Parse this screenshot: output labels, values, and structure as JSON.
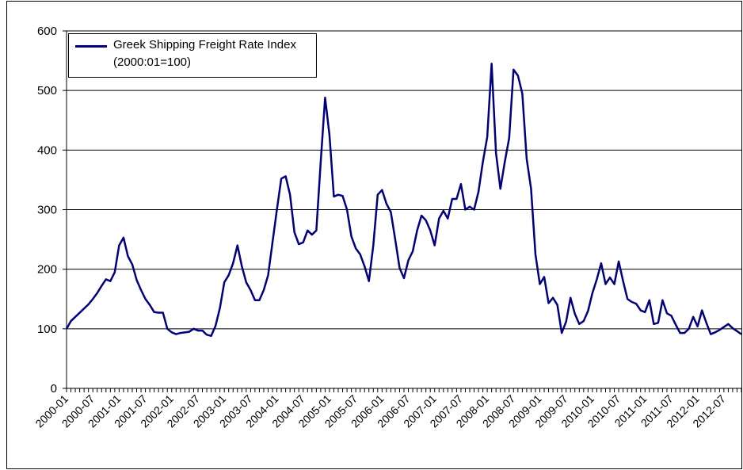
{
  "chart_data": {
    "type": "line",
    "categories": [
      "2000-01",
      null,
      null,
      null,
      null,
      null,
      "2000-07",
      null,
      null,
      null,
      null,
      null,
      "2001-01",
      null,
      null,
      null,
      null,
      null,
      "2001-07",
      null,
      null,
      null,
      null,
      null,
      "2002-01",
      null,
      null,
      null,
      null,
      null,
      "2002-07",
      null,
      null,
      null,
      null,
      null,
      "2003-01",
      null,
      null,
      null,
      null,
      null,
      "2003-07",
      null,
      null,
      null,
      null,
      null,
      "2004-01",
      null,
      null,
      null,
      null,
      null,
      "2004-07",
      null,
      null,
      null,
      null,
      null,
      "2005-01",
      null,
      null,
      null,
      null,
      null,
      "2005-07",
      null,
      null,
      null,
      null,
      null,
      "2006-01",
      null,
      null,
      null,
      null,
      null,
      "2006-07",
      null,
      null,
      null,
      null,
      null,
      "2007-01",
      null,
      null,
      null,
      null,
      null,
      "2007-07",
      null,
      null,
      null,
      null,
      null,
      "2008-01",
      null,
      null,
      null,
      null,
      null,
      "2008-07",
      null,
      null,
      null,
      null,
      null,
      "2009-01",
      null,
      null,
      null,
      null,
      null,
      "2009-07",
      null,
      null,
      null,
      null,
      null,
      "2010-01",
      null,
      null,
      null,
      null,
      null,
      "2010-07",
      null,
      null,
      null,
      null,
      null,
      "2011-01",
      null,
      null,
      null,
      null,
      null,
      "2011-07",
      null,
      null,
      null,
      null,
      null,
      "2012-01",
      null,
      null,
      null,
      null,
      null,
      "2012-07",
      null,
      null,
      null,
      null
    ],
    "series": [
      {
        "name": "Greek Shipping Freight Rate Index (2000:01=100)",
        "color": "#000080",
        "values": [
          100,
          113,
          120,
          127,
          134,
          141,
          150,
          160,
          172,
          183,
          180,
          195,
          240,
          253,
          222,
          208,
          182,
          165,
          150,
          140,
          128,
          127,
          127,
          100,
          94,
          91,
          93,
          94,
          95,
          100,
          97,
          97,
          90,
          88,
          105,
          135,
          178,
          190,
          210,
          240,
          205,
          178,
          165,
          148,
          148,
          165,
          190,
          245,
          300,
          352,
          356,
          325,
          262,
          242,
          245,
          265,
          258,
          265,
          380,
          488,
          425,
          322,
          325,
          323,
          300,
          255,
          235,
          225,
          205,
          180,
          240,
          325,
          333,
          310,
          296,
          250,
          202,
          185,
          215,
          230,
          265,
          290,
          282,
          265,
          240,
          285,
          298,
          285,
          318,
          318,
          343,
          300,
          305,
          300,
          330,
          380,
          422,
          545,
          395,
          335,
          380,
          420,
          535,
          525,
          495,
          385,
          335,
          225,
          175,
          187,
          143,
          152,
          140,
          93,
          112,
          152,
          125,
          108,
          113,
          130,
          160,
          183,
          210,
          175,
          186,
          175,
          213,
          180,
          150,
          145,
          142,
          131,
          128,
          148,
          108,
          110,
          148,
          126,
          122,
          107,
          93,
          93,
          100,
          120,
          104,
          131,
          110,
          91,
          94,
          98,
          103,
          108,
          101,
          96,
          91
        ]
      }
    ],
    "ylim": [
      0,
      600
    ],
    "yticks": [
      0,
      100,
      200,
      300,
      400,
      500,
      600
    ],
    "grid": true,
    "legend": "top-left"
  }
}
